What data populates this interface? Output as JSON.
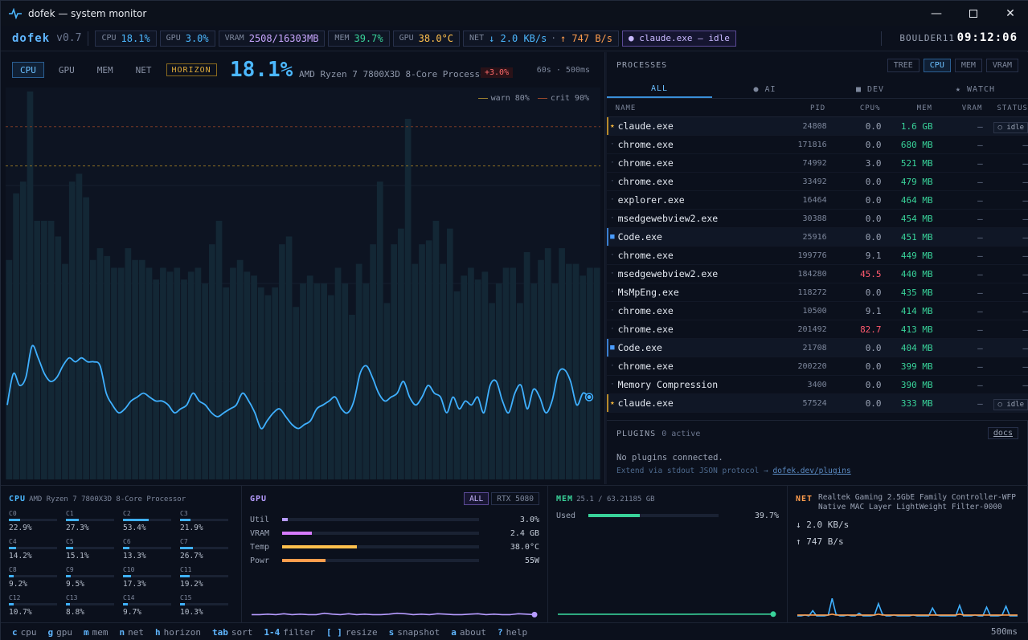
{
  "window": {
    "title": "dofek — system monitor"
  },
  "statusbar": {
    "brand": "dofek",
    "version": "v0.7",
    "chips": [
      {
        "key": "CPU",
        "value": "18.1%",
        "color": "#4cb8ff"
      },
      {
        "key": "GPU",
        "value": "3.0%",
        "color": "#4cb8ff"
      },
      {
        "key": "VRAM",
        "value": "2508/16303MB",
        "color": "#c9a7ff"
      },
      {
        "key": "MEM",
        "value": "39.7%",
        "color": "#39d39a"
      },
      {
        "key": "GPU",
        "value": "38.0°C",
        "color": "#ffc04d"
      }
    ],
    "net": {
      "key": "NET",
      "down": "↓ 2.0 KB/s",
      "dot": "·",
      "up": "↑ 747 B/s"
    },
    "claude": "● claude.exe — idle",
    "host": "BOULDER11",
    "clock": "09:12:06"
  },
  "chart": {
    "tabs": [
      "CPU",
      "GPU",
      "MEM",
      "NET"
    ],
    "horizon": "HORIZON",
    "big_value": "18.1%",
    "cpu_name": "AMD Ryzen 7 7800X3D 8-Core Processor",
    "delta": "+3.0%",
    "window_info": "60s · 500ms",
    "legend_warn": "warn 80%",
    "legend_crit": "crit 90%"
  },
  "chart_data": {
    "type": "area",
    "title": "",
    "ylim": [
      0,
      100
    ],
    "warn": 80,
    "crit": 90,
    "bars": [
      56,
      73,
      76,
      99,
      66,
      66,
      66,
      62,
      55,
      76,
      78,
      72,
      56,
      59,
      57,
      54,
      54,
      59,
      56,
      56,
      54,
      51,
      54,
      53,
      54,
      51,
      53,
      54,
      50,
      60,
      66,
      49,
      54,
      56,
      53,
      52,
      49,
      47,
      49,
      60,
      62,
      44,
      50,
      52,
      50,
      50,
      47,
      54,
      50,
      42,
      55,
      50,
      60,
      76,
      45,
      60,
      64,
      92,
      55,
      60,
      61,
      66,
      55,
      64,
      48,
      52,
      54,
      51,
      53,
      45,
      50,
      54,
      54,
      45,
      58,
      50,
      56,
      59,
      50,
      59,
      55,
      55,
      52,
      54,
      54
    ],
    "line": [
      19,
      27,
      24,
      26,
      34,
      31,
      27,
      25,
      26,
      29,
      31,
      30,
      31,
      30,
      30,
      29,
      22,
      19,
      17,
      18,
      20,
      21,
      22,
      21,
      20,
      20,
      19,
      17,
      18,
      19,
      22,
      20,
      19,
      17,
      16,
      17,
      18,
      19,
      22,
      20,
      17,
      13,
      15,
      17,
      18,
      16,
      14,
      13,
      14,
      15,
      18,
      19,
      20,
      21,
      18,
      17,
      20,
      27,
      29,
      26,
      22,
      20,
      21,
      22,
      25,
      21,
      19,
      21,
      24,
      22,
      21,
      17,
      21,
      18,
      20,
      19,
      21,
      17,
      24,
      25,
      20,
      17,
      22,
      24,
      18,
      23,
      21,
      17,
      20,
      27,
      28,
      25,
      19,
      22,
      21
    ]
  },
  "processes": {
    "title": "PROCESSES",
    "sort_tabs": [
      "TREE",
      "CPU",
      "MEM",
      "VRAM"
    ],
    "filters": [
      "ALL",
      "● AI",
      "■ DEV",
      "★ WATCH"
    ],
    "columns": {
      "name": "NAME",
      "pid": "PID",
      "cpu": "CPU%",
      "mem": "MEM",
      "vram": "VRAM",
      "status": "STATUS"
    },
    "rows": [
      {
        "mark": "★",
        "name": "claude.exe",
        "pid": "24808",
        "cpu": "0.0",
        "mem": "1.6 GB",
        "vram": "—",
        "status": "○ idle",
        "kind": "watch"
      },
      {
        "mark": "·",
        "name": "chrome.exe",
        "pid": "171816",
        "cpu": "0.0",
        "mem": "680 MB",
        "vram": "—",
        "status": "—",
        "kind": ""
      },
      {
        "mark": "·",
        "name": "chrome.exe",
        "pid": "74992",
        "cpu": "3.0",
        "mem": "521 MB",
        "vram": "—",
        "status": "—",
        "kind": ""
      },
      {
        "mark": "·",
        "name": "chrome.exe",
        "pid": "33492",
        "cpu": "0.0",
        "mem": "479 MB",
        "vram": "—",
        "status": "—",
        "kind": ""
      },
      {
        "mark": "·",
        "name": "explorer.exe",
        "pid": "16464",
        "cpu": "0.0",
        "mem": "464 MB",
        "vram": "—",
        "status": "—",
        "kind": ""
      },
      {
        "mark": "·",
        "name": "msedgewebview2.exe",
        "pid": "30388",
        "cpu": "0.0",
        "mem": "454 MB",
        "vram": "—",
        "status": "—",
        "kind": ""
      },
      {
        "mark": "■",
        "name": "Code.exe",
        "pid": "25916",
        "cpu": "0.0",
        "mem": "451 MB",
        "vram": "—",
        "status": "—",
        "kind": "dev"
      },
      {
        "mark": "·",
        "name": "chrome.exe",
        "pid": "199776",
        "cpu": "9.1",
        "mem": "449 MB",
        "vram": "—",
        "status": "—",
        "kind": ""
      },
      {
        "mark": "·",
        "name": "msedgewebview2.exe",
        "pid": "184280",
        "cpu": "45.5",
        "mem": "440 MB",
        "vram": "—",
        "status": "—",
        "kind": "hot"
      },
      {
        "mark": "·",
        "name": "MsMpEng.exe",
        "pid": "118272",
        "cpu": "0.0",
        "mem": "435 MB",
        "vram": "—",
        "status": "—",
        "kind": ""
      },
      {
        "mark": "·",
        "name": "chrome.exe",
        "pid": "10500",
        "cpu": "9.1",
        "mem": "414 MB",
        "vram": "—",
        "status": "—",
        "kind": ""
      },
      {
        "mark": "·",
        "name": "chrome.exe",
        "pid": "201492",
        "cpu": "82.7",
        "mem": "413 MB",
        "vram": "—",
        "status": "—",
        "kind": "hot"
      },
      {
        "mark": "■",
        "name": "Code.exe",
        "pid": "21708",
        "cpu": "0.0",
        "mem": "404 MB",
        "vram": "—",
        "status": "—",
        "kind": "dev"
      },
      {
        "mark": "·",
        "name": "chrome.exe",
        "pid": "200220",
        "cpu": "0.0",
        "mem": "399 MB",
        "vram": "—",
        "status": "—",
        "kind": ""
      },
      {
        "mark": "·",
        "name": "Memory Compression",
        "pid": "3400",
        "cpu": "0.0",
        "mem": "390 MB",
        "vram": "—",
        "status": "—",
        "kind": ""
      },
      {
        "mark": "★",
        "name": "claude.exe",
        "pid": "57524",
        "cpu": "0.0",
        "mem": "333 MB",
        "vram": "—",
        "status": "○ idle",
        "kind": "watch"
      }
    ]
  },
  "plugins": {
    "title": "PLUGINS",
    "count": "0 active",
    "docs": "docs",
    "empty": "No plugins connected.",
    "extend_text": "Extend via stdout JSON protocol →",
    "extend_link": "dofek.dev/plugins"
  },
  "cpu_panel": {
    "title": "CPU",
    "subtitle": "AMD Ryzen 7 7800X3D 8-Core Processor",
    "cores": [
      {
        "label": "C0",
        "value": "22.9%",
        "pct": 22.9
      },
      {
        "label": "C1",
        "value": "27.3%",
        "pct": 27.3
      },
      {
        "label": "C2",
        "value": "53.4%",
        "pct": 53.4
      },
      {
        "label": "C3",
        "value": "21.9%",
        "pct": 21.9
      },
      {
        "label": "C4",
        "value": "14.2%",
        "pct": 14.2
      },
      {
        "label": "C5",
        "value": "15.1%",
        "pct": 15.1
      },
      {
        "label": "C6",
        "value": "13.3%",
        "pct": 13.3
      },
      {
        "label": "C7",
        "value": "26.7%",
        "pct": 26.7
      },
      {
        "label": "C8",
        "value": "9.2%",
        "pct": 9.2
      },
      {
        "label": "C9",
        "value": "9.5%",
        "pct": 9.5
      },
      {
        "label": "C10",
        "value": "17.3%",
        "pct": 17.3
      },
      {
        "label": "C11",
        "value": "19.2%",
        "pct": 19.2
      },
      {
        "label": "C12",
        "value": "10.7%",
        "pct": 10.7
      },
      {
        "label": "C13",
        "value": "8.8%",
        "pct": 8.8
      },
      {
        "label": "C14",
        "value": "9.7%",
        "pct": 9.7
      },
      {
        "label": "C15",
        "value": "10.3%",
        "pct": 10.3
      }
    ]
  },
  "gpu_panel": {
    "title": "GPU",
    "tabs": [
      "ALL",
      "RTX 5080"
    ],
    "rows": [
      {
        "label": "Util",
        "value": "3.0%",
        "pct": 3,
        "color": "#b79cff"
      },
      {
        "label": "VRAM",
        "value": "2.4 GB",
        "pct": 15,
        "color": "#d67bff"
      },
      {
        "label": "Temp",
        "value": "38.0°C",
        "pct": 38,
        "color": "#ffc04d"
      },
      {
        "label": "Powr",
        "value": "55W",
        "pct": 22,
        "color": "#ff9d4d"
      }
    ],
    "spark": [
      3,
      3,
      4,
      3,
      5,
      3,
      4,
      3,
      3,
      6,
      4,
      3,
      5,
      3,
      4,
      3,
      3,
      4,
      6,
      5,
      3,
      4,
      3,
      5,
      4,
      3,
      3,
      4,
      5,
      3,
      4,
      3,
      3,
      5,
      4,
      3
    ]
  },
  "mem_panel": {
    "title": "MEM",
    "subtitle": "25.1 / 63.21185 GB",
    "used_label": "Used",
    "used_value": "39.7%",
    "used_pct": 39.7,
    "spark": [
      39,
      39,
      39,
      39,
      39,
      39,
      39,
      39,
      39,
      39,
      39,
      39,
      39,
      39,
      39,
      39,
      39,
      39,
      39,
      40,
      40,
      40,
      40,
      40,
      40,
      40,
      40,
      40,
      40,
      40
    ]
  },
  "net_panel": {
    "title": "NET",
    "adapter_line1": "Realtek Gaming 2.5GbE Family Controller-WFP",
    "adapter_line2": "Native MAC Layer LightWeight Filter-0000",
    "down": "↓ 2.0 KB/s",
    "up": "↑ 747 B/s",
    "spark_down": [
      0,
      0,
      1,
      0,
      6,
      0,
      0,
      0,
      1,
      20,
      2,
      0,
      0,
      1,
      0,
      0,
      3,
      0,
      0,
      0,
      1,
      14,
      2,
      0,
      0,
      1,
      0,
      0,
      0,
      0,
      1,
      0,
      0,
      0,
      0,
      9,
      1,
      0,
      0,
      0,
      0,
      0,
      12,
      0,
      0,
      0,
      1,
      0,
      0,
      10,
      0,
      0,
      0,
      1,
      11,
      0,
      0,
      0
    ],
    "spark_up": [
      1,
      1,
      1,
      1,
      1,
      1,
      1,
      1,
      1,
      2,
      1,
      1,
      1,
      1,
      1,
      1,
      1,
      1,
      1,
      1,
      1,
      2,
      1,
      1,
      1,
      1,
      1,
      1,
      1,
      1,
      1,
      1,
      1,
      1,
      1,
      1,
      1,
      1,
      1,
      1,
      1,
      1,
      2,
      1,
      1,
      1,
      1,
      1,
      1,
      1,
      1,
      1,
      1,
      1,
      1,
      1,
      1,
      1
    ]
  },
  "footer": {
    "keys": [
      {
        "key": "c",
        "label": "cpu"
      },
      {
        "key": "g",
        "label": "gpu"
      },
      {
        "key": "m",
        "label": "mem"
      },
      {
        "key": "n",
        "label": "net"
      },
      {
        "key": "h",
        "label": "horizon"
      },
      {
        "key": "tab",
        "label": "sort"
      },
      {
        "key": "1-4",
        "label": "filter"
      },
      {
        "key": "[ ]",
        "label": "resize"
      },
      {
        "key": "s",
        "label": "snapshot"
      },
      {
        "key": "a",
        "label": "about"
      },
      {
        "key": "?",
        "label": "help"
      }
    ],
    "rate": "500ms"
  }
}
